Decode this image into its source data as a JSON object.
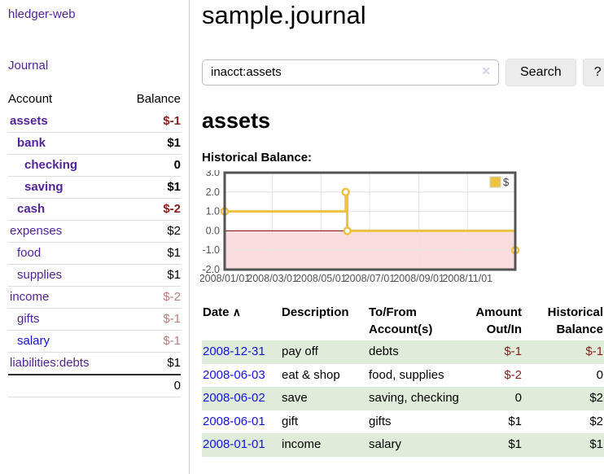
{
  "colors": {
    "link_purple": "#51249b",
    "link_blue": "#1412dd",
    "negative_dark": "#8b1d1d",
    "negative_light": "#bd7b7b",
    "row_green": "#dfecd9",
    "series_gold": "#edc240"
  },
  "sidebar": {
    "brand": "hledger-web",
    "journal_link": "Journal",
    "accounts_table": {
      "headers": [
        "Account",
        "Balance"
      ],
      "rows": [
        {
          "account": "assets",
          "balance": "$-1",
          "indent": 1,
          "bold": true,
          "negative": true,
          "blue": false
        },
        {
          "account": "bank",
          "balance": "$1",
          "indent": 2,
          "bold": true,
          "negative": false,
          "blue": false
        },
        {
          "account": "checking",
          "balance": "0",
          "indent": 3,
          "bold": true,
          "negative": false,
          "blue": false
        },
        {
          "account": "saving",
          "balance": "$1",
          "indent": 3,
          "bold": true,
          "negative": false,
          "blue": false
        },
        {
          "account": "cash",
          "balance": "$-2",
          "indent": 2,
          "bold": true,
          "negative": true,
          "blue": false
        },
        {
          "account": "expenses",
          "balance": "$2",
          "indent": 1,
          "bold": false,
          "negative": false,
          "blue": false
        },
        {
          "account": "food",
          "balance": "$1",
          "indent": 2,
          "bold": false,
          "negative": false,
          "blue": false
        },
        {
          "account": "supplies",
          "balance": "$1",
          "indent": 2,
          "bold": false,
          "negative": false,
          "blue": false
        },
        {
          "account": "income",
          "balance": "$-2",
          "indent": 1,
          "bold": false,
          "negative": true,
          "blue": false
        },
        {
          "account": "gifts",
          "balance": "$-1",
          "indent": 2,
          "bold": false,
          "negative": true,
          "blue": false
        },
        {
          "account": "salary",
          "balance": "$-1",
          "indent": 2,
          "bold": false,
          "negative": true,
          "blue": true
        },
        {
          "account": "liabilities:debts",
          "balance": "$1",
          "indent": 1,
          "bold": false,
          "negative": false,
          "blue": false
        }
      ],
      "total": "0"
    }
  },
  "header": {
    "title": "sample.journal"
  },
  "search": {
    "value": "inacct:assets",
    "clear_icon": "✕",
    "button_label": "Search",
    "help_label": "?"
  },
  "main": {
    "account_title": "assets"
  },
  "chart_data": {
    "type": "line",
    "title": "Historical Balance:",
    "xlim": [
      0,
      365
    ],
    "ylim": [
      -2,
      3
    ],
    "grid": true,
    "legend_position": "top-right",
    "legend": {
      "label": "$",
      "color": "#edc240"
    },
    "x_ticks": [
      {
        "v": 0,
        "label": "2008/01/01"
      },
      {
        "v": 60,
        "label": "2008/03/01"
      },
      {
        "v": 121,
        "label": "2008/05/01"
      },
      {
        "v": 182,
        "label": "2008/07/01"
      },
      {
        "v": 244,
        "label": "2008/09/01"
      },
      {
        "v": 305,
        "label": "2008/11/01"
      }
    ],
    "y_ticks": [
      {
        "v": 3,
        "label": "3.0"
      },
      {
        "v": 2,
        "label": "2.0"
      },
      {
        "v": 1,
        "label": "1.0"
      },
      {
        "v": 0,
        "label": "0.0"
      },
      {
        "v": -1,
        "label": "-1.0"
      },
      {
        "v": -2,
        "label": "-2.0"
      }
    ],
    "series": [
      {
        "name": "$",
        "color": "#edc240",
        "step_points": [
          [
            0,
            1
          ],
          [
            152,
            1
          ],
          [
            152,
            2
          ],
          [
            154,
            2
          ],
          [
            154,
            0
          ],
          [
            365,
            0
          ],
          [
            365,
            -1
          ]
        ],
        "markers": [
          [
            0,
            1
          ],
          [
            152,
            2
          ],
          [
            154,
            0
          ],
          [
            365,
            -1
          ]
        ]
      }
    ],
    "negative_region_color": "#fadcdc",
    "zero_line_color": "#8b0000",
    "border_color": "#545454",
    "grid_color": "#e3e3e3",
    "tick_text_color": "#545454"
  },
  "register_table": {
    "headers": [
      {
        "line1": "Date",
        "line2": "",
        "sorted_asc": true,
        "align": "left"
      },
      {
        "line1": "Description",
        "line2": "",
        "align": "left"
      },
      {
        "line1": "To/From",
        "line2": "Account(s)",
        "align": "left"
      },
      {
        "line1": "Amount",
        "line2": "Out/In",
        "align": "right"
      },
      {
        "line1": "Historical",
        "line2": "Balance",
        "align": "right"
      }
    ],
    "sort_asc_icon": "∧",
    "rows": [
      {
        "date": "2008-12-31",
        "description": "pay off",
        "accounts": "debts",
        "amount": "$-1",
        "amount_negative": true,
        "balance": "$-1",
        "balance_negative": true,
        "shaded": true
      },
      {
        "date": "2008-06-03",
        "description": "eat & shop",
        "accounts": "food, supplies",
        "amount": "$-2",
        "amount_negative": true,
        "balance": "0",
        "balance_negative": false,
        "shaded": false
      },
      {
        "date": "2008-06-02",
        "description": "save",
        "accounts": "saving, checking",
        "amount": "0",
        "amount_negative": false,
        "balance": "$2",
        "balance_negative": false,
        "shaded": true
      },
      {
        "date": "2008-06-01",
        "description": "gift",
        "accounts": "gifts",
        "amount": "$1",
        "amount_negative": false,
        "balance": "$2",
        "balance_negative": false,
        "shaded": false
      },
      {
        "date": "2008-01-01",
        "description": "income",
        "accounts": "salary",
        "amount": "$1",
        "amount_negative": false,
        "balance": "$1",
        "balance_negative": false,
        "shaded": true
      }
    ]
  }
}
